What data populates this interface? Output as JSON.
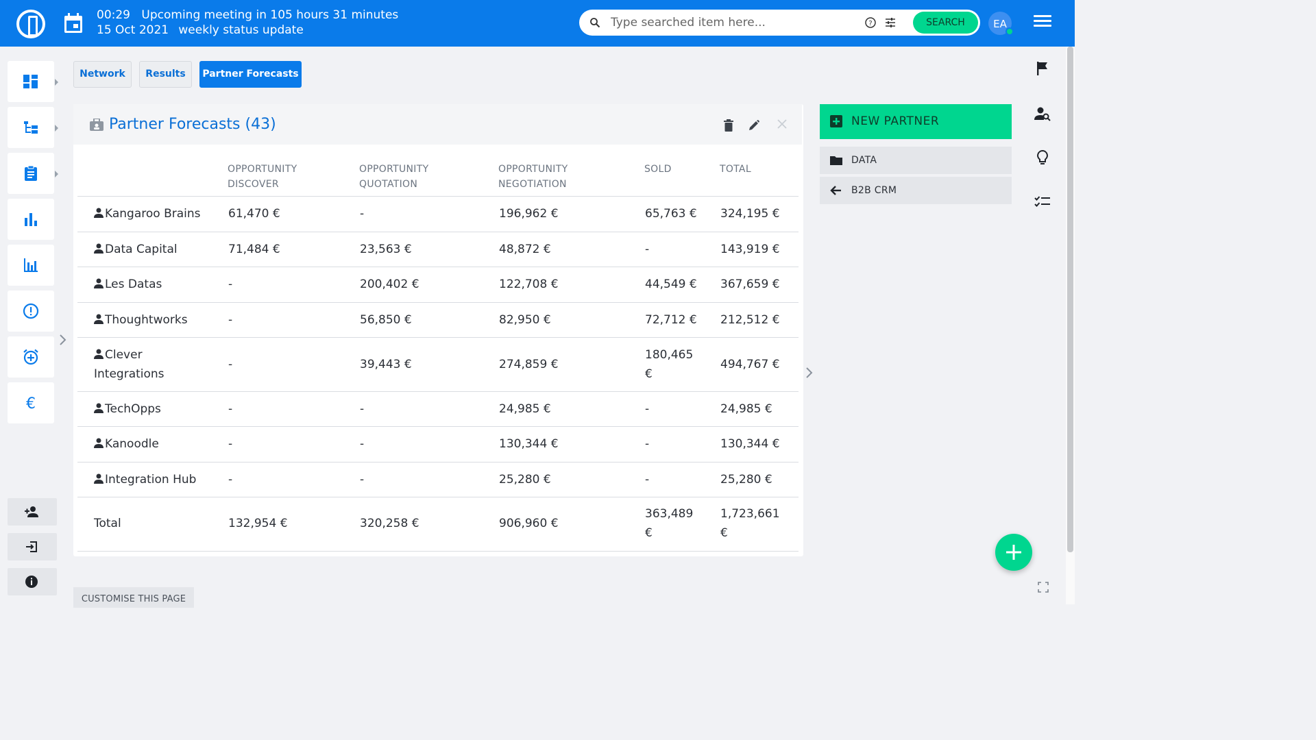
{
  "topbar": {
    "meeting_time": "00:29",
    "meeting_text": "Upcoming meeting in 105 hours 31 minutes",
    "meeting_date": "15 Oct 2021",
    "meeting_title": "weekly status update",
    "search_placeholder": "Type searched item here...",
    "search_button": "SEARCH",
    "avatar_initials": "EA",
    "brand_color": "#0a7bea",
    "accent_color": "#00d68f"
  },
  "sidebar": {
    "items": [
      {
        "icon": "dashboard-icon"
      },
      {
        "icon": "hierarchy-icon"
      },
      {
        "icon": "clipboard-icon"
      },
      {
        "icon": "bar-chart-icon"
      },
      {
        "icon": "column-chart-icon"
      },
      {
        "icon": "alert-icon"
      },
      {
        "icon": "alarm-add-icon"
      },
      {
        "icon": "euro-icon"
      }
    ],
    "bottom": [
      {
        "icon": "add-user-icon"
      },
      {
        "icon": "login-icon"
      },
      {
        "icon": "info-icon"
      }
    ]
  },
  "tabs": [
    "Network",
    "Results",
    "Partner Forecasts"
  ],
  "card": {
    "title": "Partner Forecasts (43)",
    "columns": [
      "OPPORTUNITY DISCOVER",
      "OPPORTUNITY QUOTATION",
      "OPPORTUNITY NEGOTIATION",
      "SOLD",
      "TOTAL"
    ],
    "rows": [
      {
        "name": "Kangaroo Brains",
        "discover": "61,470 €",
        "quotation": "-",
        "negotiation": "196,962 €",
        "sold": "65,763 €",
        "total": "324,195 €"
      },
      {
        "name": "Data Capital",
        "discover": "71,484 €",
        "quotation": "23,563 €",
        "negotiation": "48,872 €",
        "sold": "-",
        "total": "143,919 €"
      },
      {
        "name": "Les Datas",
        "discover": "-",
        "quotation": "200,402 €",
        "negotiation": "122,708 €",
        "sold": "44,549 €",
        "total": "367,659 €"
      },
      {
        "name": "Thoughtworks",
        "discover": "-",
        "quotation": "56,850 €",
        "negotiation": "82,950 €",
        "sold": "72,712 €",
        "total": "212,512 €"
      },
      {
        "name": "Clever Integrations",
        "discover": "-",
        "quotation": "39,443 €",
        "negotiation": "274,859 €",
        "sold": "180,465 €",
        "total": "494,767 €"
      },
      {
        "name": "TechOpps",
        "discover": "-",
        "quotation": "-",
        "negotiation": "24,985 €",
        "sold": "-",
        "total": "24,985 €"
      },
      {
        "name": "Kanoodle",
        "discover": "-",
        "quotation": "-",
        "negotiation": "130,344 €",
        "sold": "-",
        "total": "130,344 €"
      },
      {
        "name": "Integration Hub",
        "discover": "-",
        "quotation": "-",
        "negotiation": "25,280 €",
        "sold": "-",
        "total": "25,280 €"
      }
    ],
    "total": {
      "name": "Total",
      "discover": "132,954 €",
      "quotation": "320,258 €",
      "negotiation": "906,960 €",
      "sold": "363,489 €",
      "total": "1,723,661 €"
    }
  },
  "panel": {
    "new_partner": "NEW PARTNER",
    "items": [
      "DATA",
      "B2B CRM"
    ]
  },
  "rail": [
    "flag-icon",
    "person-search-icon",
    "lightbulb-icon",
    "checklist-icon"
  ],
  "customise": "CUSTOMISE THIS PAGE"
}
